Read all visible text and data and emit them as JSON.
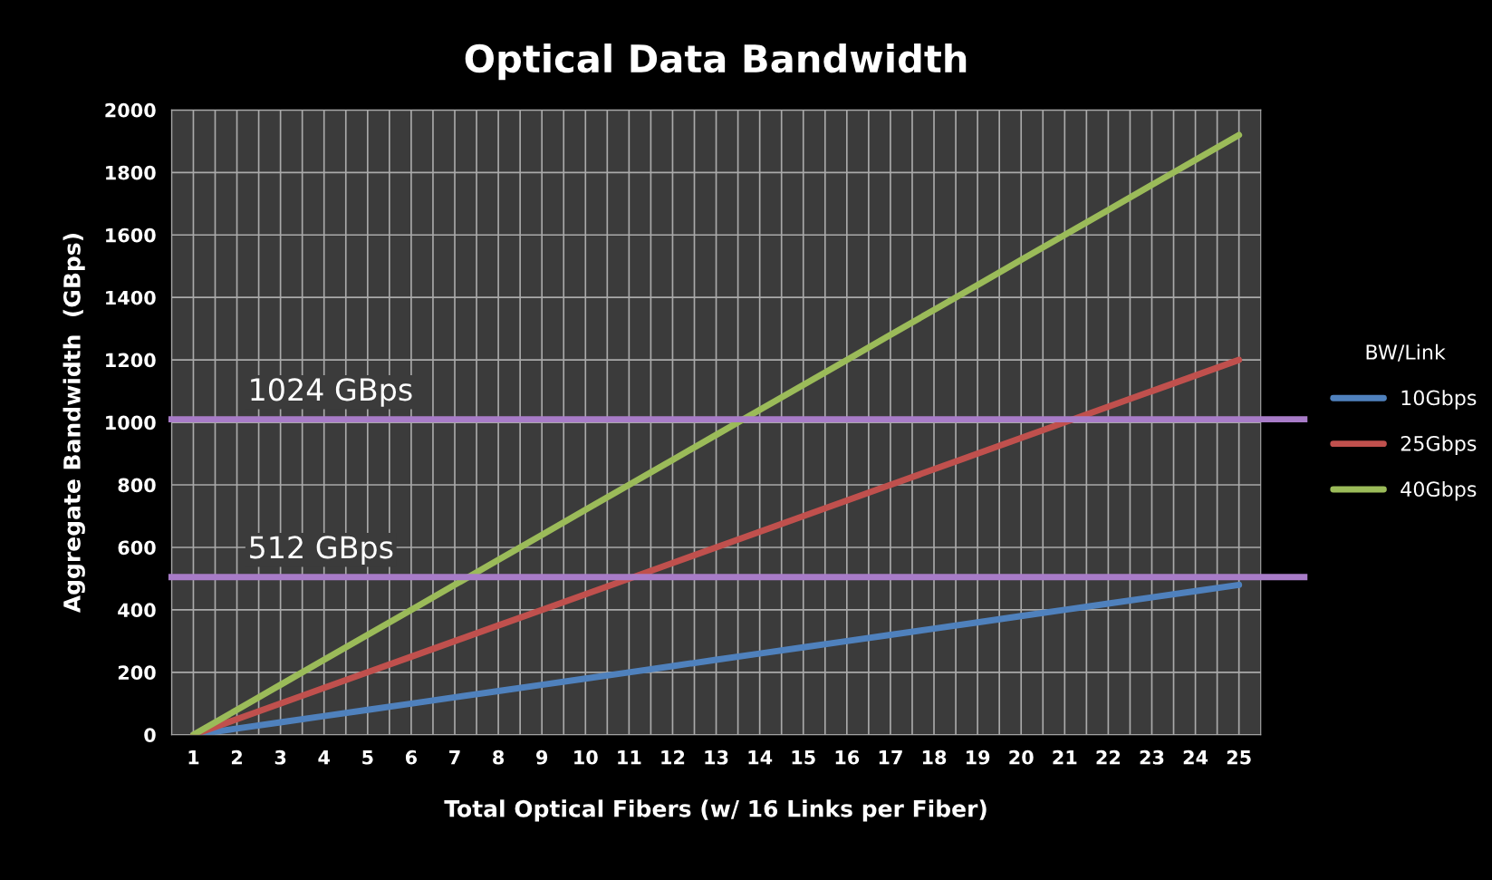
{
  "chart_data": {
    "type": "line",
    "title": "Optical Data Bandwidth",
    "xlabel": "Total Optical Fibers (w/ 16 Links per Fiber)",
    "ylabel": "Aggregate Bandwidth  (GBps)",
    "legend_title": "BW/Link",
    "categories": [
      "1",
      "2",
      "3",
      "4",
      "5",
      "6",
      "7",
      "8",
      "9",
      "10",
      "11",
      "12",
      "13",
      "14",
      "15",
      "16",
      "17",
      "18",
      "19",
      "20",
      "21",
      "22",
      "23",
      "24",
      "25"
    ],
    "series": [
      {
        "name": "10Gbps",
        "color": "#4f81bd",
        "values": [
          0,
          20,
          40,
          60,
          80,
          100,
          120,
          140,
          160,
          180,
          200,
          220,
          240,
          260,
          280,
          300,
          320,
          340,
          360,
          380,
          400,
          420,
          440,
          460,
          480
        ]
      },
      {
        "name": "25Gbps",
        "color": "#c0504d",
        "values": [
          0,
          50,
          100,
          150,
          200,
          250,
          300,
          350,
          400,
          450,
          500,
          550,
          600,
          650,
          700,
          750,
          800,
          850,
          900,
          950,
          1000,
          1050,
          1100,
          1150,
          1200
        ]
      },
      {
        "name": "40Gbps",
        "color": "#9bbb59",
        "values": [
          0,
          80,
          160,
          240,
          320,
          400,
          480,
          560,
          640,
          720,
          800,
          880,
          960,
          1040,
          1120,
          1200,
          1280,
          1360,
          1440,
          1520,
          1600,
          1680,
          1760,
          1840,
          1920
        ]
      }
    ],
    "ylim": [
      0,
      2000
    ],
    "yticks": [
      0,
      200,
      400,
      600,
      800,
      1000,
      1200,
      1400,
      1600,
      1800,
      2000
    ],
    "ref_lines": [
      {
        "axis": "y",
        "value": 1010,
        "label": "1024 GBps",
        "color": "#a87cc8"
      },
      {
        "axis": "y",
        "value": 505,
        "label": "512 GBps",
        "color": "#a87cc8"
      }
    ],
    "grid": true,
    "legend": "right",
    "marker": "none",
    "line_style": "solid"
  }
}
